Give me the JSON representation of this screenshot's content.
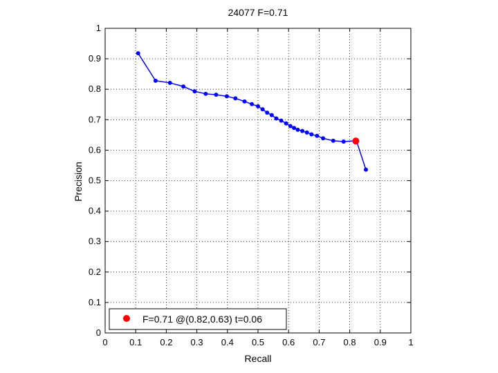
{
  "chart_data": {
    "type": "line",
    "title": "24077 F=0.71",
    "xlabel": "Recall",
    "ylabel": "Precision",
    "xlim": [
      0,
      1
    ],
    "ylim": [
      0,
      1
    ],
    "xticks": [
      0,
      0.1,
      0.2,
      0.3,
      0.4,
      0.5,
      0.6,
      0.7,
      0.8,
      0.9,
      1
    ],
    "yticks": [
      0,
      0.1,
      0.2,
      0.3,
      0.4,
      0.5,
      0.6,
      0.7,
      0.8,
      0.9,
      1
    ],
    "xtick_labels": [
      "0",
      "0.1",
      "0.2",
      "0.3",
      "0.4",
      "0.5",
      "0.6",
      "0.7",
      "0.8",
      "0.9",
      "1"
    ],
    "ytick_labels": [
      "0",
      "0.1",
      "0.2",
      "0.3",
      "0.4",
      "0.5",
      "0.6",
      "0.7",
      "0.8",
      "0.9",
      "1"
    ],
    "grid": true,
    "legend_position": "bottom-left",
    "series": [
      {
        "color": "#0000ff",
        "x": [
          0.108,
          0.165,
          0.212,
          0.256,
          0.293,
          0.329,
          0.363,
          0.398,
          0.426,
          0.456,
          0.48,
          0.5,
          0.515,
          0.53,
          0.545,
          0.56,
          0.576,
          0.592,
          0.606,
          0.618,
          0.63,
          0.645,
          0.66,
          0.675,
          0.693,
          0.713,
          0.746,
          0.78,
          0.822,
          0.853
        ],
        "y": [
          0.918,
          0.828,
          0.821,
          0.809,
          0.793,
          0.785,
          0.782,
          0.777,
          0.77,
          0.76,
          0.751,
          0.744,
          0.734,
          0.723,
          0.715,
          0.704,
          0.697,
          0.688,
          0.679,
          0.673,
          0.667,
          0.663,
          0.658,
          0.652,
          0.647,
          0.639,
          0.631,
          0.628,
          0.631,
          0.536
        ]
      }
    ],
    "highlight": {
      "color": "#ff0000",
      "x": 0.82,
      "y": 0.63,
      "label": "F=0.71 @(0.82,0.63) t=0.06"
    }
  }
}
